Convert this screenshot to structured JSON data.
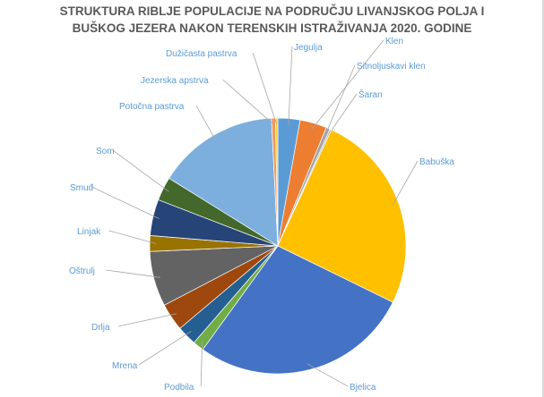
{
  "chart_data": {
    "type": "pie",
    "title_lines": [
      "STRUKTURA RIBLJE POPULACIJE NA PODRUČJU LIVANJSKOG POLJA I",
      "BUŠKOG JEZERA NAKON TERENSKIH ISTRAŽIVANJA 2020. GODINE"
    ],
    "unit": "percent (estimated)",
    "label_color": "#5B9BD5",
    "slices": [
      {
        "label": "Jegulja",
        "value": 2.8,
        "color": "#5B9BD5"
      },
      {
        "label": "Klen",
        "value": 3.4,
        "color": "#ED7D31"
      },
      {
        "label": "Sitnoljuskavi klen",
        "value": 0.5,
        "color": "#A5A5A5"
      },
      {
        "label": "Šaran",
        "value": 0.2,
        "color": "#B7B7B7"
      },
      {
        "label": "Babuška",
        "value": 25.5,
        "color": "#FFC000"
      },
      {
        "label": "Bjelica",
        "value": 27.8,
        "color": "#4472C4"
      },
      {
        "label": "Podbila",
        "value": 1.4,
        "color": "#70AD47"
      },
      {
        "label": "Mrena",
        "value": 2.5,
        "color": "#255E91"
      },
      {
        "label": "Drlja",
        "value": 3.5,
        "color": "#9E480E"
      },
      {
        "label": "Oštrulj",
        "value": 7.0,
        "color": "#636363"
      },
      {
        "label": "Linjak",
        "value": 2.0,
        "color": "#997300"
      },
      {
        "label": "Smuđ",
        "value": 4.6,
        "color": "#264478"
      },
      {
        "label": "Som",
        "value": 3.0,
        "color": "#43682B"
      },
      {
        "label": "Potočna pastrva",
        "value": 15.4,
        "color": "#7CAFDD"
      },
      {
        "label": "Jezerska apstrva",
        "value": 0.5,
        "color": "#F1975A"
      },
      {
        "label": "Dužičasta pastrva",
        "value": 0.3,
        "color": "#FFCD33"
      }
    ]
  }
}
